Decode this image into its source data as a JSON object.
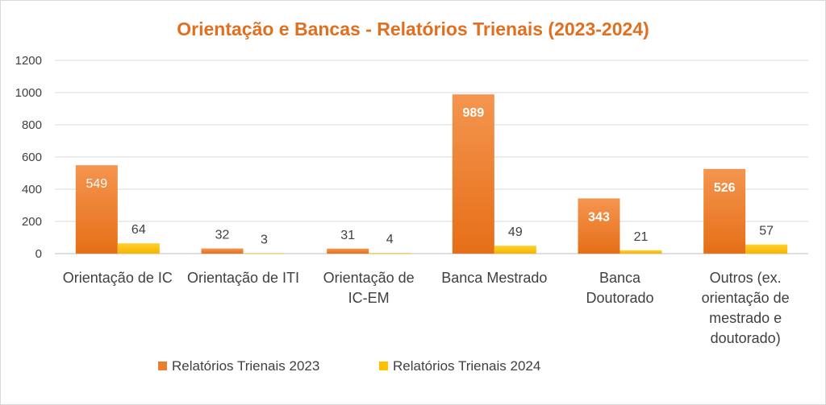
{
  "chart_data": {
    "type": "bar",
    "title": "Orientação e Bancas - Relatórios Trienais (2023-2024)",
    "categories": [
      [
        "Orientação de IC"
      ],
      [
        "Orientação de ITI"
      ],
      [
        "Orientação de",
        "IC-EM"
      ],
      [
        "Banca Mestrado"
      ],
      [
        "Banca",
        "Doutorado"
      ],
      [
        "Outros (ex.",
        "orientação de",
        "mestrado e",
        "doutorado)"
      ]
    ],
    "series": [
      {
        "name": "Relatórios Trienais 2023",
        "values": [
          549,
          32,
          31,
          989,
          343,
          526
        ],
        "color": "#ed7d31"
      },
      {
        "name": "Relatórios Trienais 2024",
        "values": [
          64,
          3,
          4,
          49,
          21,
          57
        ],
        "color": "#ffc000"
      }
    ],
    "yticks": [
      "0",
      "200",
      "400",
      "600",
      "800",
      "1000",
      "1200"
    ],
    "ylim": [
      0,
      1200
    ],
    "grid": true,
    "legend": "bottom",
    "xlabel": "",
    "ylabel": ""
  }
}
